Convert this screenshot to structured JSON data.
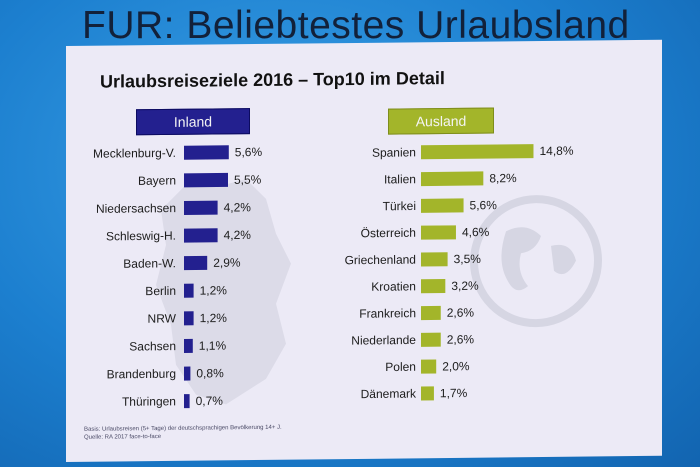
{
  "slide_title": "FUR: Beliebtestes Urlaubsland",
  "panel_title": "Urlaubsreiseziele 2016 – Top10 im Detail",
  "source": {
    "line1": "Basis: Urlaubsreisen (5+ Tage) der deutschsprachigen Bevölkerung 14+ J.",
    "line2": "Quelle: RA 2017 face-to-face"
  },
  "colors": {
    "inland": "#23208f",
    "ausland": "#a3b52a"
  },
  "chart_data": [
    {
      "type": "bar",
      "orientation": "horizontal",
      "title": "Inland",
      "categories": [
        "Mecklenburg-V.",
        "Bayern",
        "Niedersachsen",
        "Schleswig-H.",
        "Baden-W.",
        "Berlin",
        "NRW",
        "Sachsen",
        "Brandenburg",
        "Thüringen"
      ],
      "values": [
        5.6,
        5.5,
        4.2,
        4.2,
        2.9,
        1.2,
        1.2,
        1.1,
        0.8,
        0.7
      ],
      "value_labels": [
        "5,6%",
        "5,5%",
        "4,2%",
        "4,2%",
        "2,9%",
        "1,2%",
        "1,2%",
        "1,1%",
        "0,8%",
        "0,7%"
      ],
      "unit": "%"
    },
    {
      "type": "bar",
      "orientation": "horizontal",
      "title": "Ausland",
      "categories": [
        "Spanien",
        "Italien",
        "Türkei",
        "Österreich",
        "Griechenland",
        "Kroatien",
        "Frankreich",
        "Niederlande",
        "Polen",
        "Dänemark"
      ],
      "values": [
        14.8,
        8.2,
        5.6,
        4.6,
        3.5,
        3.2,
        2.6,
        2.6,
        2.0,
        1.7
      ],
      "value_labels": [
        "14,8%",
        "8,2%",
        "5,6%",
        "4,6%",
        "3,5%",
        "3,2%",
        "2,6%",
        "2,6%",
        "2,0%",
        "1,7%"
      ],
      "unit": "%"
    }
  ]
}
